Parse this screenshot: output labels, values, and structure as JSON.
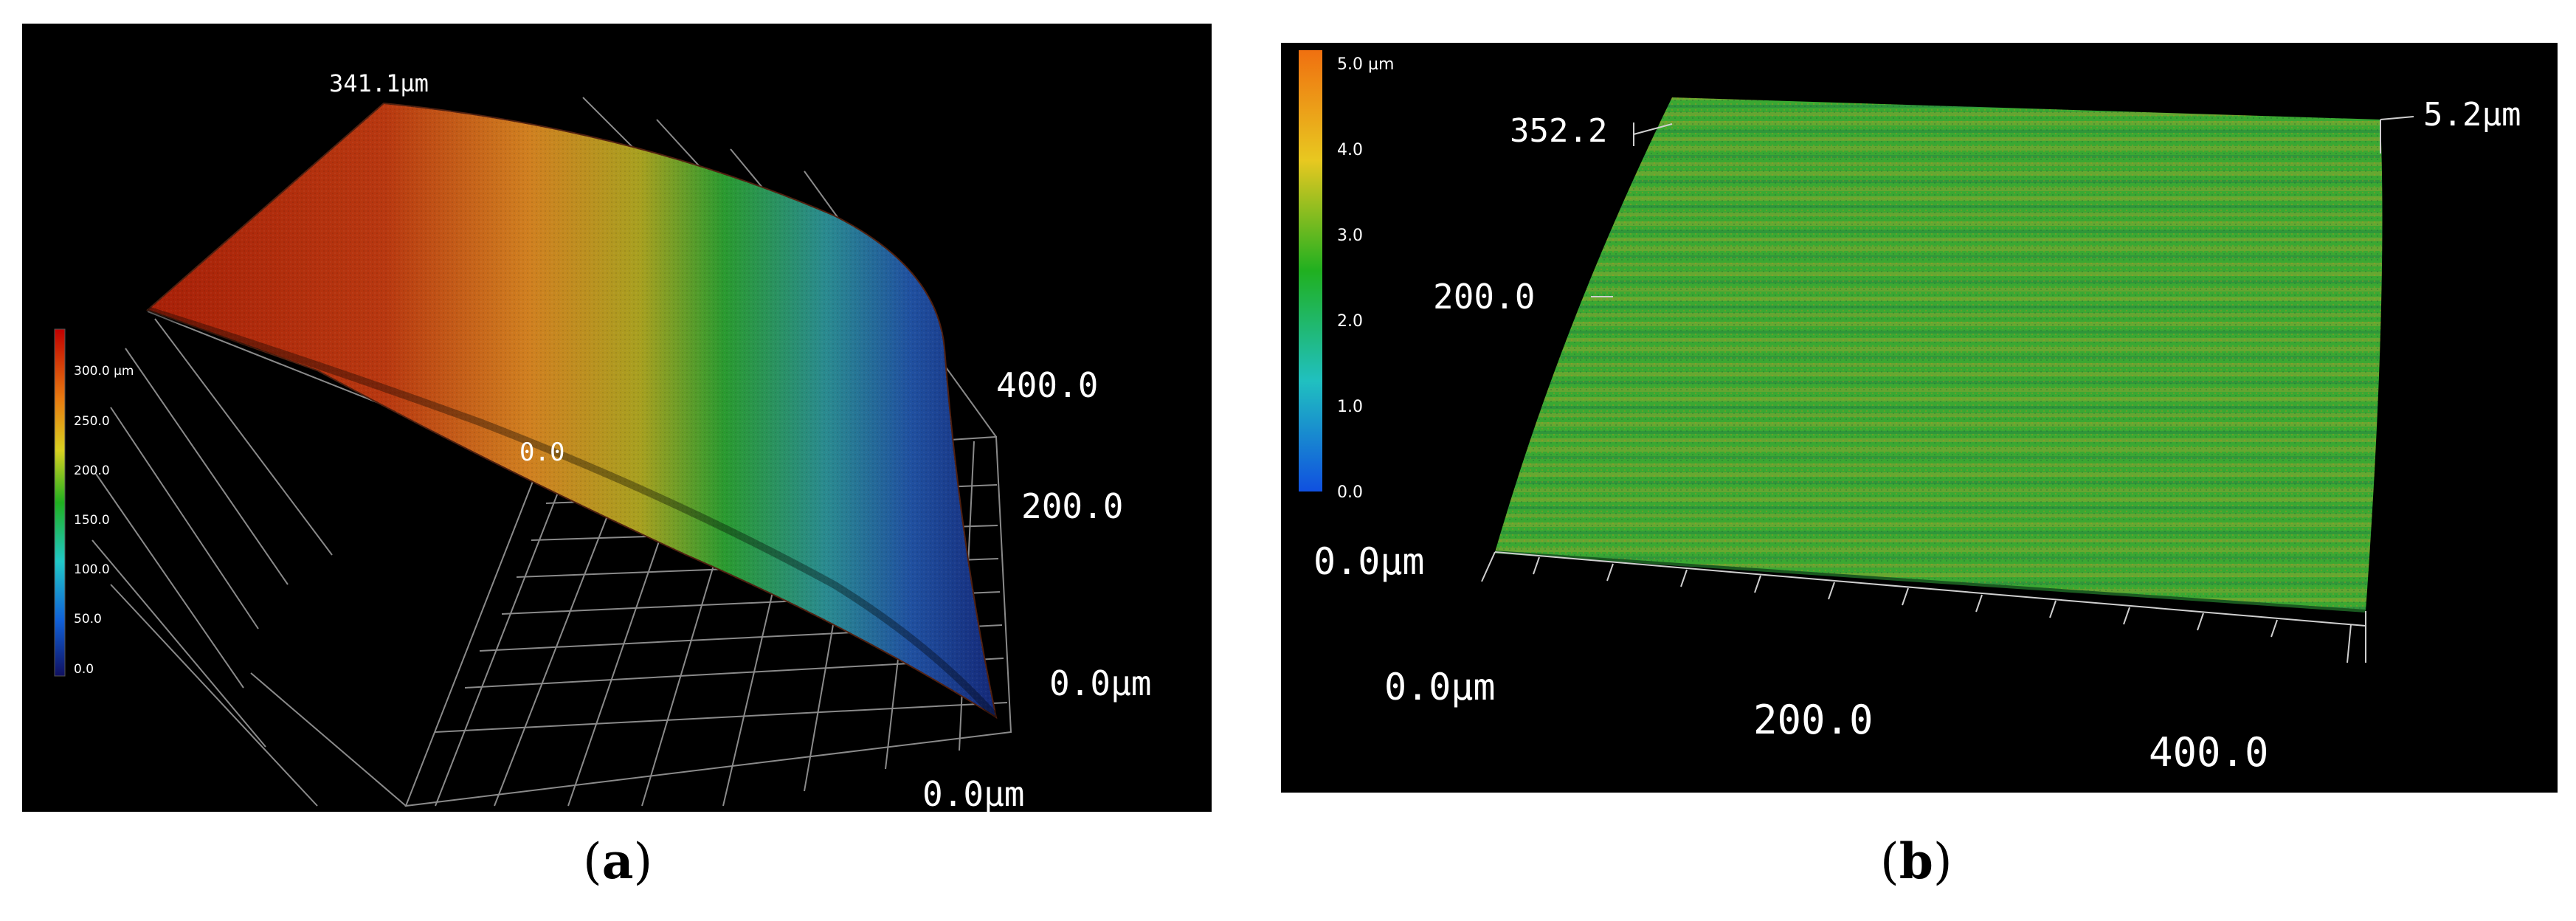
{
  "panel_a": {
    "caption_letter": "a",
    "color_scale": {
      "labels": [
        "300.0 µm",
        "250.0",
        "200.0",
        "150.0",
        "100.0",
        "50.0",
        "0.0"
      ],
      "colors": [
        "#c00000",
        "#e87a10",
        "#d8d020",
        "#20b020",
        "#20c8c8",
        "#1060d8",
        "#101060"
      ]
    },
    "axis_labels": {
      "peak": "341.1µm",
      "origin": "0.0",
      "y_400": "400.0",
      "y_200": "200.0",
      "y_0": "0.0µm",
      "x_0": "0.0µm"
    }
  },
  "panel_b": {
    "caption_letter": "b",
    "color_scale": {
      "labels": [
        "5.0 µm",
        "4.0",
        "3.0",
        "2.0",
        "1.0",
        "0.0"
      ],
      "colors": [
        "#f07010",
        "#e8c820",
        "#20b020",
        "#20c0c0",
        "#1050e0"
      ]
    },
    "axis_labels": {
      "z_top": "5.2µm",
      "y_352": "352.2",
      "y_200": "200.0",
      "z_0": "0.0µm",
      "x_0": "0.0µm",
      "x_200": "200.0",
      "x_400": "400.0"
    }
  }
}
